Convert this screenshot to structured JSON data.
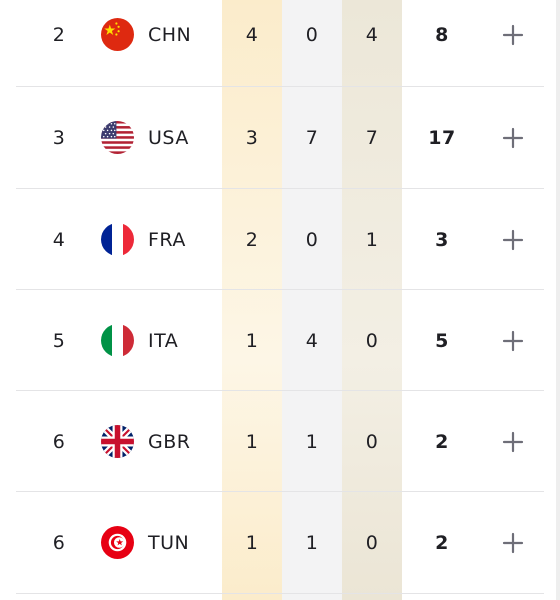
{
  "rows": [
    {
      "rank": "2",
      "flag": "china-flag-icon",
      "country": "CHN",
      "gold": "4",
      "silver": "0",
      "bronze": "4",
      "total": "8"
    },
    {
      "rank": "3",
      "flag": "usa-flag-icon",
      "country": "USA",
      "gold": "3",
      "silver": "7",
      "bronze": "7",
      "total": "17"
    },
    {
      "rank": "4",
      "flag": "france-flag-icon",
      "country": "FRA",
      "gold": "2",
      "silver": "0",
      "bronze": "1",
      "total": "3"
    },
    {
      "rank": "5",
      "flag": "italy-flag-icon",
      "country": "ITA",
      "gold": "1",
      "silver": "4",
      "bronze": "0",
      "total": "5"
    },
    {
      "rank": "6",
      "flag": "uk-flag-icon",
      "country": "GBR",
      "gold": "1",
      "silver": "1",
      "bronze": "0",
      "total": "2"
    },
    {
      "rank": "6",
      "flag": "tunisia-flag-icon",
      "country": "TUN",
      "gold": "1",
      "silver": "1",
      "bronze": "0",
      "total": "2"
    }
  ],
  "colors": {
    "gold_column": "#fbeccb",
    "silver_column": "#f3f3f4",
    "bronze_column": "#ece7d8",
    "text": "#1f1f24",
    "expand_icon": "#6e6e78"
  }
}
